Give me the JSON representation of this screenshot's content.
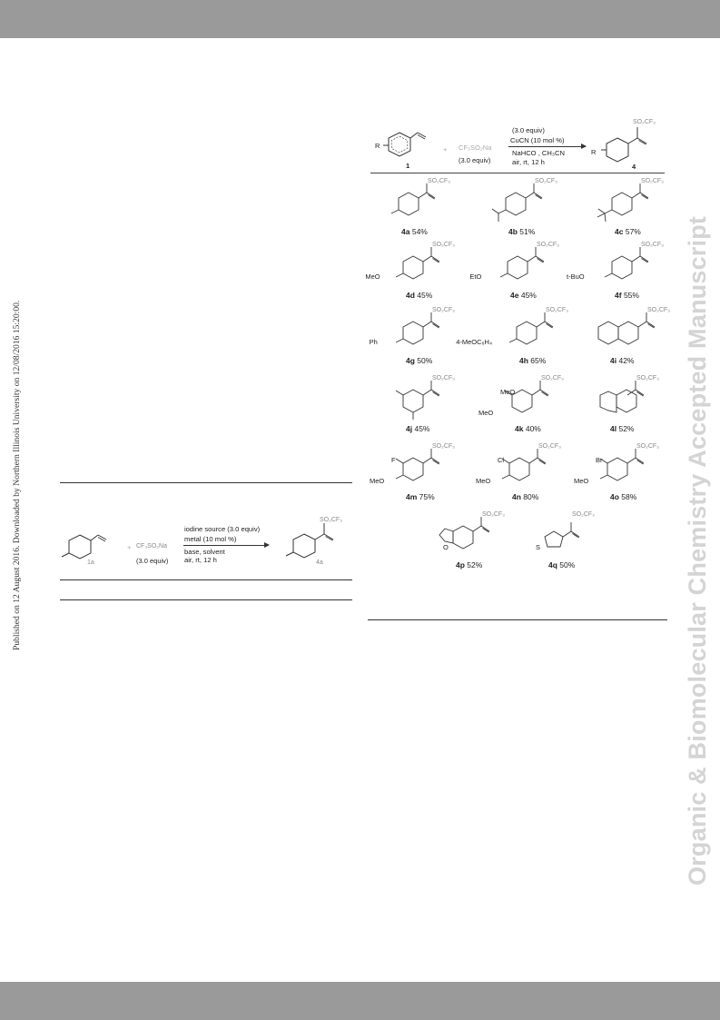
{
  "sidebar": {
    "published_note": "Published on 12 August 2016. Downloaded by Northern Illinois University on 12/08/2016 15:20:00.",
    "journal_watermark": "Organic & Biomolecular Chemistry Accepted Manuscript"
  },
  "scheme2": {
    "r_label": "R",
    "reagent": "CF₃SO₂Na",
    "reagent_equiv": "(3.0 equiv)",
    "start_label": "1",
    "product_label": "4",
    "cond_line1": "(3.0 equiv)",
    "cond_line2": "CuCN (10 mol %)",
    "cond_line3": "NaHCO , CH₃CN",
    "cond_line4": "air, rt, 12 h",
    "plus": "+",
    "products": [
      {
        "id": "4a",
        "yield": "54%"
      },
      {
        "id": "4b",
        "yield": "51%"
      },
      {
        "id": "4c",
        "yield": "57%"
      },
      {
        "id": "4d",
        "yield": "45%",
        "sub": "MeO"
      },
      {
        "id": "4e",
        "yield": "45%",
        "sub": "EtO"
      },
      {
        "id": "4f",
        "yield": "55%",
        "sub": "t-BuO"
      },
      {
        "id": "4g",
        "yield": "50%",
        "sub": "Ph"
      },
      {
        "id": "4h",
        "yield": "65%",
        "sub": "4-MeOC₆H₄"
      },
      {
        "id": "4i",
        "yield": "42%"
      },
      {
        "id": "4j",
        "yield": "45%"
      },
      {
        "id": "4k",
        "yield": "40%",
        "sub1": "MeO",
        "sub2": "MeO"
      },
      {
        "id": "4l",
        "yield": "52%"
      },
      {
        "id": "4m",
        "yield": "75%",
        "sub1": "F",
        "sub2": "MeO"
      },
      {
        "id": "4n",
        "yield": "80%",
        "sub1": "Cl",
        "sub2": "MeO"
      },
      {
        "id": "4o",
        "yield": "58%",
        "sub1": "Br",
        "sub2": "MeO"
      },
      {
        "id": "4p",
        "yield": "52%",
        "hetero": "O"
      },
      {
        "id": "4q",
        "yield": "50%",
        "hetero": "S"
      }
    ],
    "so2cf3": "SO₂CF₃"
  },
  "table1": {
    "start_label": "1a",
    "product_label": "4a",
    "reagent": "CF₃SO₂Na",
    "reagent_equiv": "(3.0 equiv)",
    "plus": "+",
    "cond_line1": "iodine source (3.0 equiv)",
    "cond_line2": "metal (10 mol %)",
    "cond_line3": "base, solvent",
    "cond_line4": "air, rt, 12 h",
    "so2cf3": "SO₂CF₃"
  }
}
